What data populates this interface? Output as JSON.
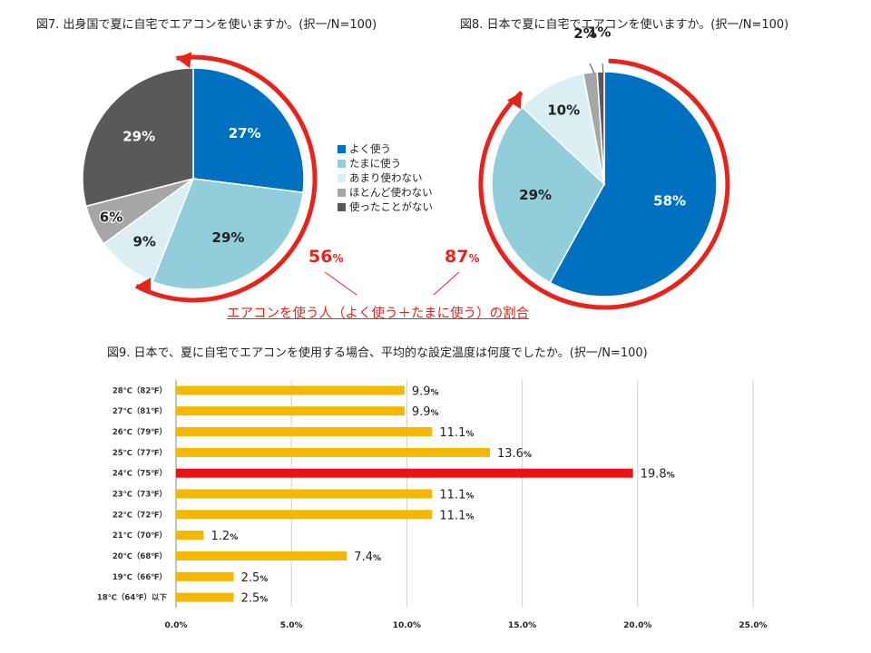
{
  "titles": {
    "fig7": "図7. 出身国で夏に自宅でエアコンを使いますか。(択一/N=100)",
    "fig8": "図8. 日本で夏に自宅でエアコンを使いますか。(択一/N=100)",
    "fig9": "図9. 日本で、夏に自宅でエアコンを使用する場合、平均的な設定温度は何度でしたか。(択一/N=100)"
  },
  "legend": [
    "よく使う",
    "たまに使う",
    "あまり使わない",
    "ほとんど使わない",
    "使ったことがない"
  ],
  "colors": {
    "often": "#0070c0",
    "sometimes": "#92cddc",
    "rarely": "#daeef3",
    "hardly": "#a6a6a6",
    "never": "#595959",
    "arrow": "#e8231b",
    "bar": "#f5b800",
    "bar_highlight": "#ee1111"
  },
  "share": {
    "home_country_value": "56",
    "japan_value": "87",
    "unit": "%",
    "caption": "エアコンを使う人（よく使う＋たまに使う）の割合"
  },
  "chart_data": [
    {
      "type": "pie",
      "title": "図7. 出身国で夏に自宅でエアコンを使いますか。(択一/N=100)",
      "categories": [
        "よく使う",
        "たまに使う",
        "あまり使わない",
        "ほとんど使わない",
        "使ったことがない"
      ],
      "values": [
        27,
        29,
        9,
        6,
        29
      ],
      "labels": [
        "27%",
        "29%",
        "9%",
        "6%",
        "29%"
      ]
    },
    {
      "type": "pie",
      "title": "図8. 日本で夏に自宅でエアコンを使いますか。(択一/N=100)",
      "categories": [
        "よく使う",
        "たまに使う",
        "あまり使わない",
        "ほとんど使わない",
        "使ったことがない"
      ],
      "values": [
        58,
        29,
        10,
        2,
        1
      ],
      "labels": [
        "58%",
        "29%",
        "10%",
        "2%",
        "1%"
      ]
    },
    {
      "type": "bar",
      "orientation": "horizontal",
      "title": "図9. 日本で、夏に自宅でエアコンを使用する場合、平均的な設定温度は何度でしたか。(択一/N=100)",
      "categories": [
        "28℃（82℉）",
        "27℃（81℉）",
        "26℃（79℉）",
        "25℃（77℉）",
        "24℃（75℉）",
        "23℃（73℉）",
        "22℃（72℉）",
        "21℃（70℉）",
        "20℃（68℉）",
        "19℃（66℉）",
        "18℃（64℉）以下"
      ],
      "values": [
        9.9,
        9.9,
        11.1,
        13.6,
        19.8,
        11.1,
        11.1,
        1.2,
        7.4,
        2.5,
        2.5
      ],
      "highlight_index": 4,
      "xlim": [
        0,
        25
      ],
      "x_ticks": [
        "0.0%",
        "5.0%",
        "10.0%",
        "15.0%",
        "20.0%",
        "25.0%"
      ],
      "grid": "vertical",
      "value_unit": "%"
    }
  ]
}
